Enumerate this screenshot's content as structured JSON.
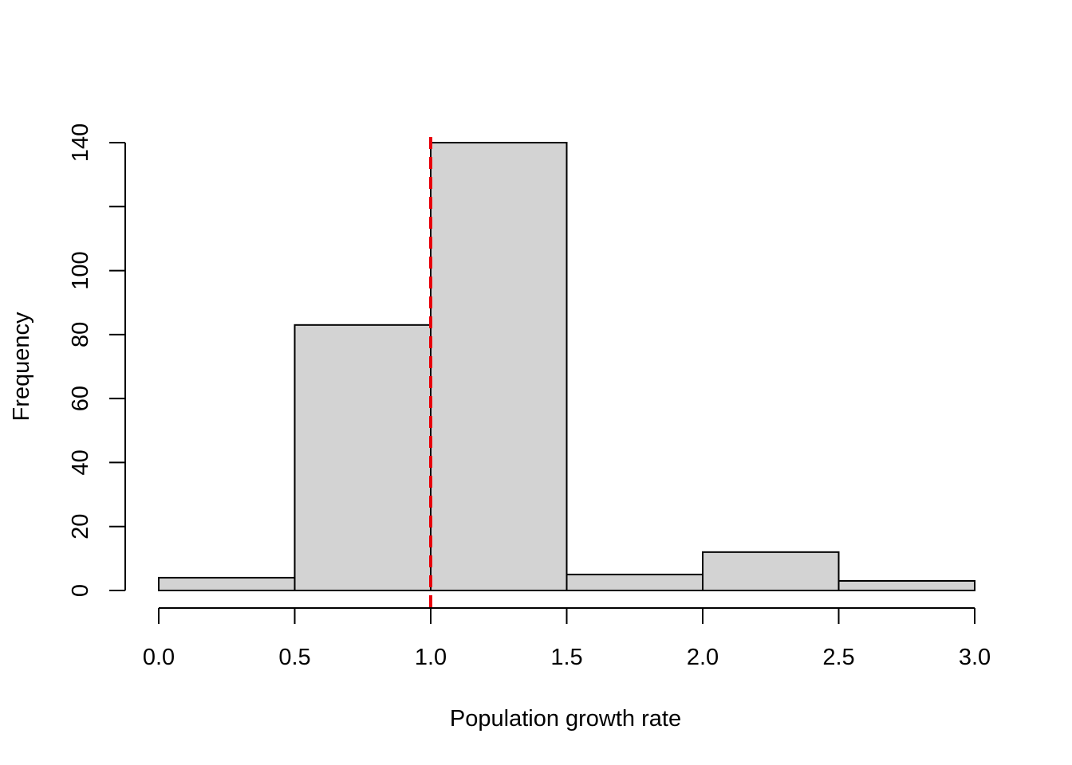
{
  "chart_data": {
    "type": "bar",
    "subtype": "histogram",
    "title": "",
    "xlabel": "Population growth rate",
    "ylabel": "Frequency",
    "bins": [
      {
        "from": 0.0,
        "to": 0.5,
        "count": 4
      },
      {
        "from": 0.5,
        "to": 1.0,
        "count": 83
      },
      {
        "from": 1.0,
        "to": 1.5,
        "count": 140
      },
      {
        "from": 1.5,
        "to": 2.0,
        "count": 5
      },
      {
        "from": 2.0,
        "to": 2.5,
        "count": 12
      },
      {
        "from": 2.5,
        "to": 3.0,
        "count": 3
      }
    ],
    "xlim": [
      0.0,
      3.0
    ],
    "ylim": [
      0,
      140
    ],
    "x_ticks": [
      "0.0",
      "0.5",
      "1.0",
      "1.5",
      "2.0",
      "2.5",
      "3.0"
    ],
    "y_ticks": [
      "0",
      "20",
      "40",
      "60",
      "80",
      "100",
      "120",
      "140"
    ],
    "y_tick_labels_shown": [
      "0",
      "20",
      "40",
      "60",
      "80",
      "100",
      "",
      "140"
    ],
    "reference_line": {
      "x": 1.0,
      "style": "dashed",
      "color": "#e8000b"
    },
    "bar_fill": "#d3d3d3",
    "grid": false,
    "legend": "none"
  }
}
